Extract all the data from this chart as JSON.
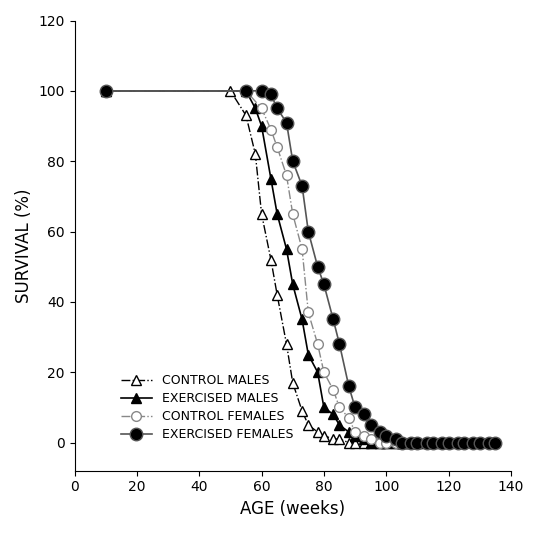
{
  "control_males_x": [
    10,
    50,
    55,
    58,
    60,
    63,
    65,
    68,
    70,
    73,
    75,
    78,
    80,
    83,
    85,
    88,
    90,
    93,
    95,
    98,
    100,
    103,
    105,
    108,
    110,
    113
  ],
  "control_males_y": [
    100,
    100,
    93,
    82,
    65,
    52,
    42,
    28,
    17,
    9,
    5,
    3,
    2,
    1,
    1,
    0,
    0,
    0,
    0,
    0,
    0,
    0,
    0,
    0,
    0,
    0
  ],
  "exercised_males_x": [
    10,
    55,
    58,
    60,
    63,
    65,
    68,
    70,
    73,
    75,
    78,
    80,
    83,
    85,
    88,
    90,
    93,
    95,
    98,
    100,
    103,
    105,
    108,
    110,
    115,
    118,
    120
  ],
  "exercised_males_y": [
    100,
    100,
    95,
    90,
    75,
    65,
    55,
    45,
    35,
    25,
    20,
    10,
    8,
    5,
    3,
    2,
    1,
    0,
    0,
    0,
    0,
    0,
    0,
    0,
    0,
    0,
    0
  ],
  "control_females_x": [
    10,
    55,
    60,
    63,
    65,
    68,
    70,
    73,
    75,
    78,
    80,
    83,
    85,
    88,
    90,
    93,
    95,
    98,
    100,
    103,
    105,
    108,
    110,
    113,
    115,
    118,
    120
  ],
  "control_females_y": [
    100,
    100,
    95,
    89,
    84,
    76,
    65,
    55,
    37,
    28,
    20,
    15,
    10,
    7,
    3,
    2,
    1,
    0,
    0,
    0,
    0,
    0,
    0,
    0,
    0,
    0,
    0
  ],
  "exercised_females_x": [
    10,
    55,
    60,
    63,
    65,
    68,
    70,
    73,
    75,
    78,
    80,
    83,
    85,
    88,
    90,
    93,
    95,
    98,
    100,
    103,
    105,
    108,
    110,
    113,
    115,
    118,
    120,
    123,
    125,
    128,
    130,
    133,
    135
  ],
  "exercised_females_y": [
    100,
    100,
    100,
    99,
    95,
    91,
    80,
    73,
    60,
    50,
    45,
    35,
    28,
    16,
    10,
    8,
    5,
    3,
    2,
    1,
    0,
    0,
    0,
    0,
    0,
    0,
    0,
    0,
    0,
    0,
    0,
    0,
    0
  ],
  "xlabel": "AGE (weeks)",
  "ylabel": "SURVIVAL (%)",
  "xlim": [
    0,
    140
  ],
  "ylim": [
    -8,
    120
  ],
  "xticks": [
    0,
    20,
    40,
    60,
    80,
    100,
    120,
    140
  ],
  "yticks": [
    0,
    20,
    40,
    60,
    80,
    100,
    120
  ],
  "legend_labels": [
    "CONTROL MALES",
    "EXERCISED MALES",
    "CONTROL FEMALES",
    "EXERCISED FEMALES"
  ],
  "control_males_color": "#000000",
  "exercised_males_color": "#000000",
  "control_females_color": "#888888",
  "exercised_females_color": "#555555",
  "bg_color": "#ffffff"
}
